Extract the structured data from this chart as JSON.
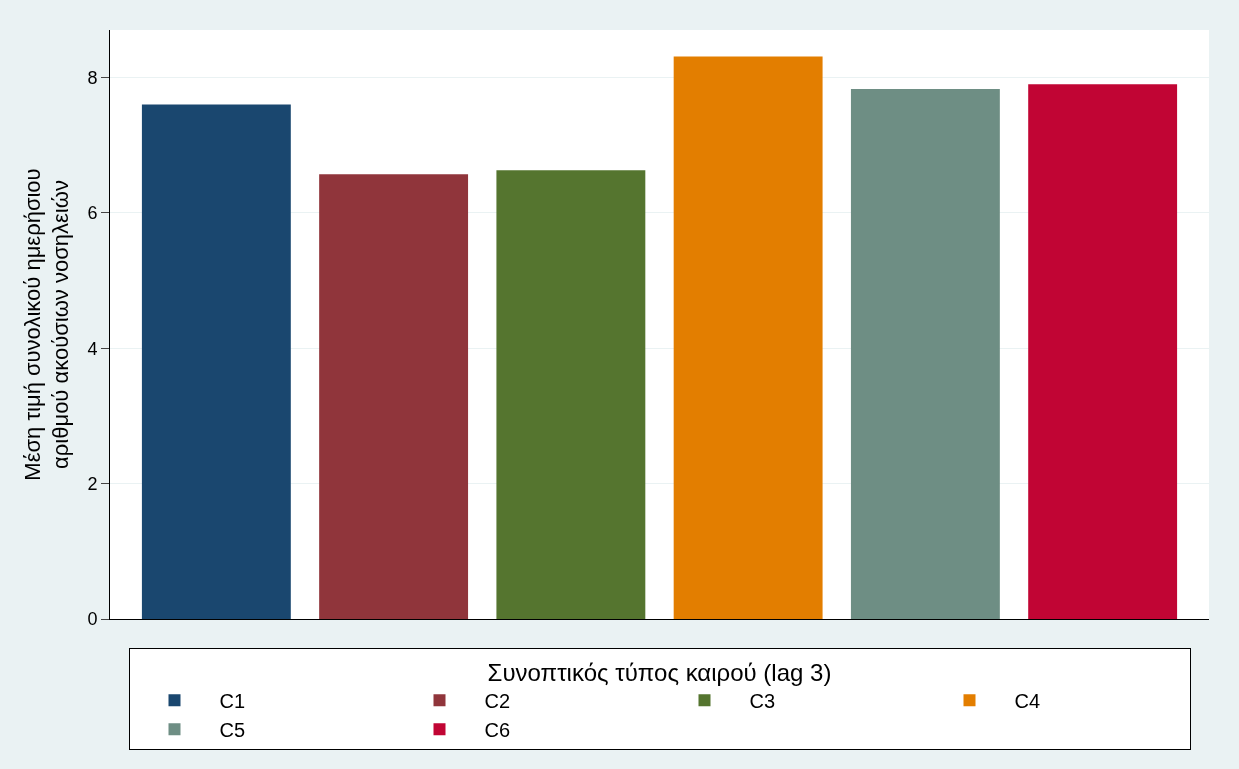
{
  "chart_data": {
    "type": "bar",
    "ylabel": "Μέση τιμή συνολικού ημερήσιου\nαριθμού ακούσιων νοσηλειών",
    "legend_title": "Συνοπτικός τύπος καιρού (lag 3)",
    "categories": [
      null,
      null,
      null,
      null,
      null,
      null
    ],
    "series": [
      {
        "name": "C1",
        "color": "#1a476f",
        "values": [
          7.6,
          null,
          null,
          null,
          null,
          null
        ]
      },
      {
        "name": "C2",
        "color": "#90353b",
        "values": [
          null,
          6.57,
          null,
          null,
          null,
          null
        ]
      },
      {
        "name": "C3",
        "color": "#55752f",
        "values": [
          null,
          null,
          6.63,
          null,
          null,
          null
        ]
      },
      {
        "name": "C4",
        "color": "#e37e00",
        "values": [
          null,
          null,
          null,
          8.31,
          null,
          null
        ]
      },
      {
        "name": "C5",
        "color": "#6e8e84",
        "values": [
          null,
          null,
          null,
          null,
          7.83,
          null
        ]
      },
      {
        "name": "C6",
        "color": "#c10534",
        "values": [
          null,
          null,
          null,
          null,
          null,
          7.9
        ]
      }
    ],
    "ylim": [
      0,
      8.7
    ],
    "yticks": [
      0,
      2,
      4,
      6,
      8
    ],
    "grid": "y",
    "legend": "bottom",
    "tick_labels": "y"
  }
}
